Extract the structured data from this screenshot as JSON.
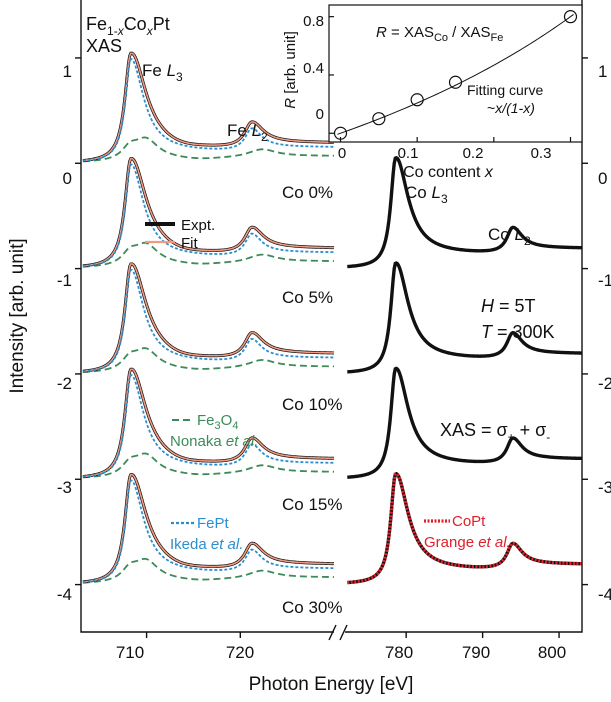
{
  "chart_data": [
    {
      "type": "line",
      "title": "",
      "xlabel": "Photon Energy [eV]",
      "ylabel": "Intensity [arb. unit]",
      "annotation": {
        "material": "Fe",
        "sub1": "1-",
        "x1": "x",
        "mid": "Co",
        "x2": "x",
        "end": "Pt",
        "line2": "XAS"
      },
      "xlim_left": [
        703,
        730
      ],
      "xlim_right": [
        772,
        803
      ],
      "ylim": [
        -4.45,
        1.55
      ],
      "xticks_left": [
        710,
        720
      ],
      "xticks_right": [
        780,
        790,
        800
      ],
      "yticks": [
        1,
        0,
        -1,
        -2,
        -3,
        -4
      ],
      "ytick_labels": [
        "1",
        "0",
        "-1",
        "-2",
        "-3",
        "-4"
      ],
      "edge_labels": {
        "fe_l3": {
          "pre": "Fe ",
          "italic": "L",
          "sub": "3"
        },
        "fe_l2": {
          "pre": "Fe ",
          "italic": "L",
          "sub": "2"
        },
        "co_l3": {
          "pre": "Co ",
          "italic": "L",
          "sub": "3"
        },
        "co_l2": {
          "pre": "Co ",
          "italic": "L",
          "sub": "2"
        }
      },
      "compositions": [
        "Co 0%",
        "Co 5%",
        "Co 10%",
        "Co 15%",
        "Co 30%"
      ],
      "offsets": [
        0,
        -1,
        -2,
        -3,
        -4
      ],
      "conditions": {
        "h_sym": "H",
        "h_val": " = 5T",
        "t_sym": "T",
        "t_val": " = 300K"
      },
      "xas_formula": {
        "text": "XAS = σ",
        "plus": "+",
        "mid": " + σ",
        "minus": "-"
      },
      "legends": {
        "expt": "Expt.",
        "fit": "Fit",
        "fe3o4": {
          "pre": "Fe",
          "s1": "3",
          "mid": "O",
          "s2": "4",
          "ref_name": "Nonaka ",
          "ref_et": "et al."
        },
        "fept": {
          "name": "FePt",
          "ref_name": "Ikeda ",
          "ref_et": "et al."
        },
        "copt": {
          "name": "CoPt",
          "ref_name": "Grange ",
          "ref_et": "et al."
        }
      },
      "series": [
        {
          "name": "Expt.",
          "color": "#111111",
          "style": "solid-thick"
        },
        {
          "name": "Fit",
          "color": "#f19a82",
          "style": "solid"
        },
        {
          "name": "FePt",
          "color": "#2a8fd0",
          "style": "dotted"
        },
        {
          "name": "Fe3O4",
          "color": "#3d8a5a",
          "style": "dashed"
        },
        {
          "name": "CoPt",
          "color": "#e0202a",
          "style": "dotted-thick"
        }
      ],
      "peaks": {
        "fe_l3": {
          "x": 708.3,
          "y": 1.0
        },
        "fe_l2": {
          "x": 721.2,
          "y": 0.28
        },
        "co_l3": {
          "x": 778.6,
          "y": 1.0
        },
        "co_l2": {
          "x": 793.9,
          "y": 0.28
        }
      }
    },
    {
      "type": "scatter",
      "title": "",
      "formula": {
        "lhs": "R",
        "eq": " = XAS",
        "sub1": "Co",
        "div": " / XAS",
        "sub2": "Fe"
      },
      "ylabel": {
        "sym": "R",
        "rest": " [arb. unit]"
      },
      "xlabel": {
        "pre": "Co content ",
        "sym": "x"
      },
      "xlim": [
        -0.015,
        0.315
      ],
      "ylim": [
        -0.06,
        0.88
      ],
      "xticks": [
        0,
        0.1,
        0.2,
        0.3
      ],
      "xtick_labels": [
        "0",
        "0.1",
        "0.2",
        "0.3"
      ],
      "yticks": [
        0,
        0.4,
        0.8
      ],
      "ytick_labels": [
        "0",
        "0.4",
        "0.8"
      ],
      "x": [
        0,
        0.05,
        0.1,
        0.15,
        0.3
      ],
      "y": [
        0,
        0.1,
        0.23,
        0.35,
        0.8
      ],
      "fit_label": {
        "line1": "Fitting curve",
        "pre": "~",
        "expr": "x/(1-x)"
      }
    }
  ]
}
